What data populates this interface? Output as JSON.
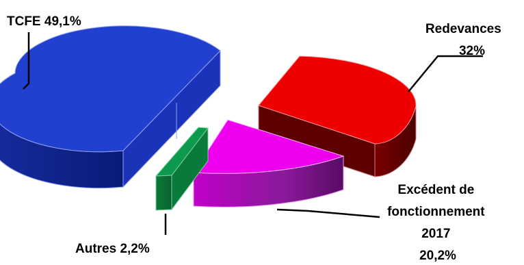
{
  "chart_data": {
    "type": "pie",
    "title": "",
    "style": "3d-exploded",
    "legend": "none",
    "slices": [
      {
        "name": "TCFE",
        "value": 49.1,
        "label_lines": [
          "TCFE 49,1%"
        ],
        "color": "#2140D0"
      },
      {
        "name": "Redevances",
        "value": 32,
        "label_lines": [
          "Redevances",
          "32%"
        ],
        "color": "#EE0000"
      },
      {
        "name": "Excédent de fonctionnement 2017",
        "value": 20.2,
        "label_lines": [
          "Excédent de",
          "fonctionnement",
          "2017",
          "20,2%"
        ],
        "color": "#EE00EE"
      },
      {
        "name": "Autres",
        "value": 2.2,
        "label_lines": [
          "Autres 2,2%"
        ],
        "color": "#0E9A4E"
      }
    ]
  }
}
